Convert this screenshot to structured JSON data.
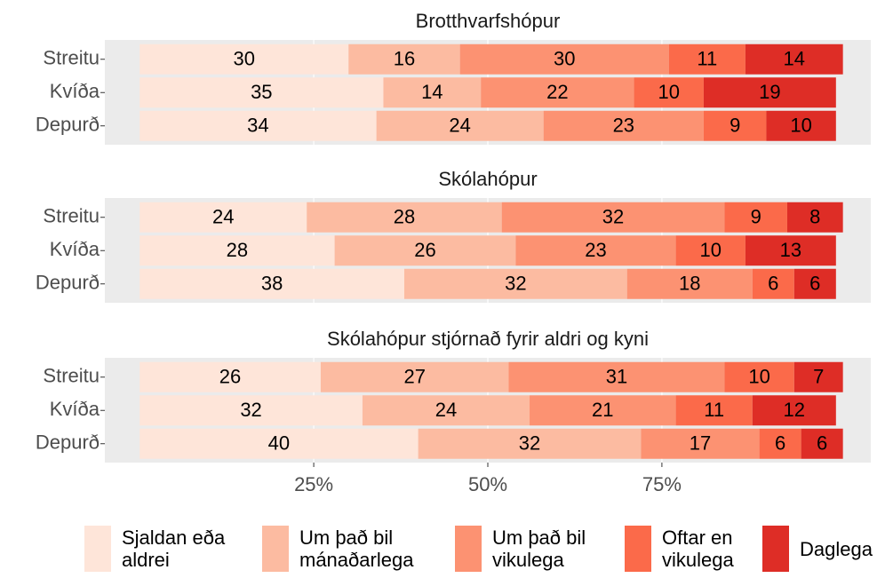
{
  "chart_data": [
    {
      "type": "stacked-bar",
      "title": "Brotthvarfshópur",
      "categories": [
        "Streitu",
        "Kvíða",
        "Depurð"
      ],
      "series": [
        {
          "name": "Sjaldan eða aldrei",
          "color": "#fee5d9",
          "values": [
            30,
            35,
            34
          ]
        },
        {
          "name": "Um það bil mánaðarlega",
          "color": "#fcbba1",
          "values": [
            16,
            14,
            24
          ]
        },
        {
          "name": "Um það bil vikulega",
          "color": "#fc9272",
          "values": [
            30,
            22,
            23
          ]
        },
        {
          "name": "Oftar en vikulega",
          "color": "#fb6a4a",
          "values": [
            11,
            10,
            9
          ]
        },
        {
          "name": "Daglega",
          "color": "#de2d26",
          "values": [
            14,
            19,
            10
          ]
        }
      ],
      "xlim": [
        -5,
        105
      ],
      "xticks": [
        {
          "value": 25,
          "label": "25%"
        },
        {
          "value": 50,
          "label": "50%"
        },
        {
          "value": 75,
          "label": "75%"
        }
      ],
      "grid": true
    },
    {
      "type": "stacked-bar",
      "title": "Skólahópur",
      "categories": [
        "Streitu",
        "Kvíða",
        "Depurð"
      ],
      "series": [
        {
          "name": "Sjaldan eða aldrei",
          "color": "#fee5d9",
          "values": [
            24,
            28,
            38
          ]
        },
        {
          "name": "Um það bil mánaðarlega",
          "color": "#fcbba1",
          "values": [
            28,
            26,
            32
          ]
        },
        {
          "name": "Um það bil vikulega",
          "color": "#fc9272",
          "values": [
            32,
            23,
            18
          ]
        },
        {
          "name": "Oftar en vikulega",
          "color": "#fb6a4a",
          "values": [
            9,
            10,
            6
          ]
        },
        {
          "name": "Daglega",
          "color": "#de2d26",
          "values": [
            8,
            13,
            6
          ]
        }
      ],
      "xlim": [
        -5,
        105
      ],
      "xticks": [
        {
          "value": 25,
          "label": "25%"
        },
        {
          "value": 50,
          "label": "50%"
        },
        {
          "value": 75,
          "label": "75%"
        }
      ],
      "grid": true
    },
    {
      "type": "stacked-bar",
      "title": "Skólahópur stjórnað fyrir aldri og kyni",
      "categories": [
        "Streitu",
        "Kvíða",
        "Depurð"
      ],
      "series": [
        {
          "name": "Sjaldan eða aldrei",
          "color": "#fee5d9",
          "values": [
            26,
            32,
            40
          ]
        },
        {
          "name": "Um það bil mánaðarlega",
          "color": "#fcbba1",
          "values": [
            27,
            24,
            32
          ]
        },
        {
          "name": "Um það bil vikulega",
          "color": "#fc9272",
          "values": [
            31,
            21,
            17
          ]
        },
        {
          "name": "Oftar en vikulega",
          "color": "#fb6a4a",
          "values": [
            10,
            11,
            6
          ]
        },
        {
          "name": "Daglega",
          "color": "#de2d26",
          "values": [
            7,
            12,
            6
          ]
        }
      ],
      "xlim": [
        -5,
        105
      ],
      "xticks": [
        {
          "value": 25,
          "label": "25%"
        },
        {
          "value": 50,
          "label": "50%"
        },
        {
          "value": 75,
          "label": "75%"
        }
      ],
      "grid": true
    }
  ]
}
